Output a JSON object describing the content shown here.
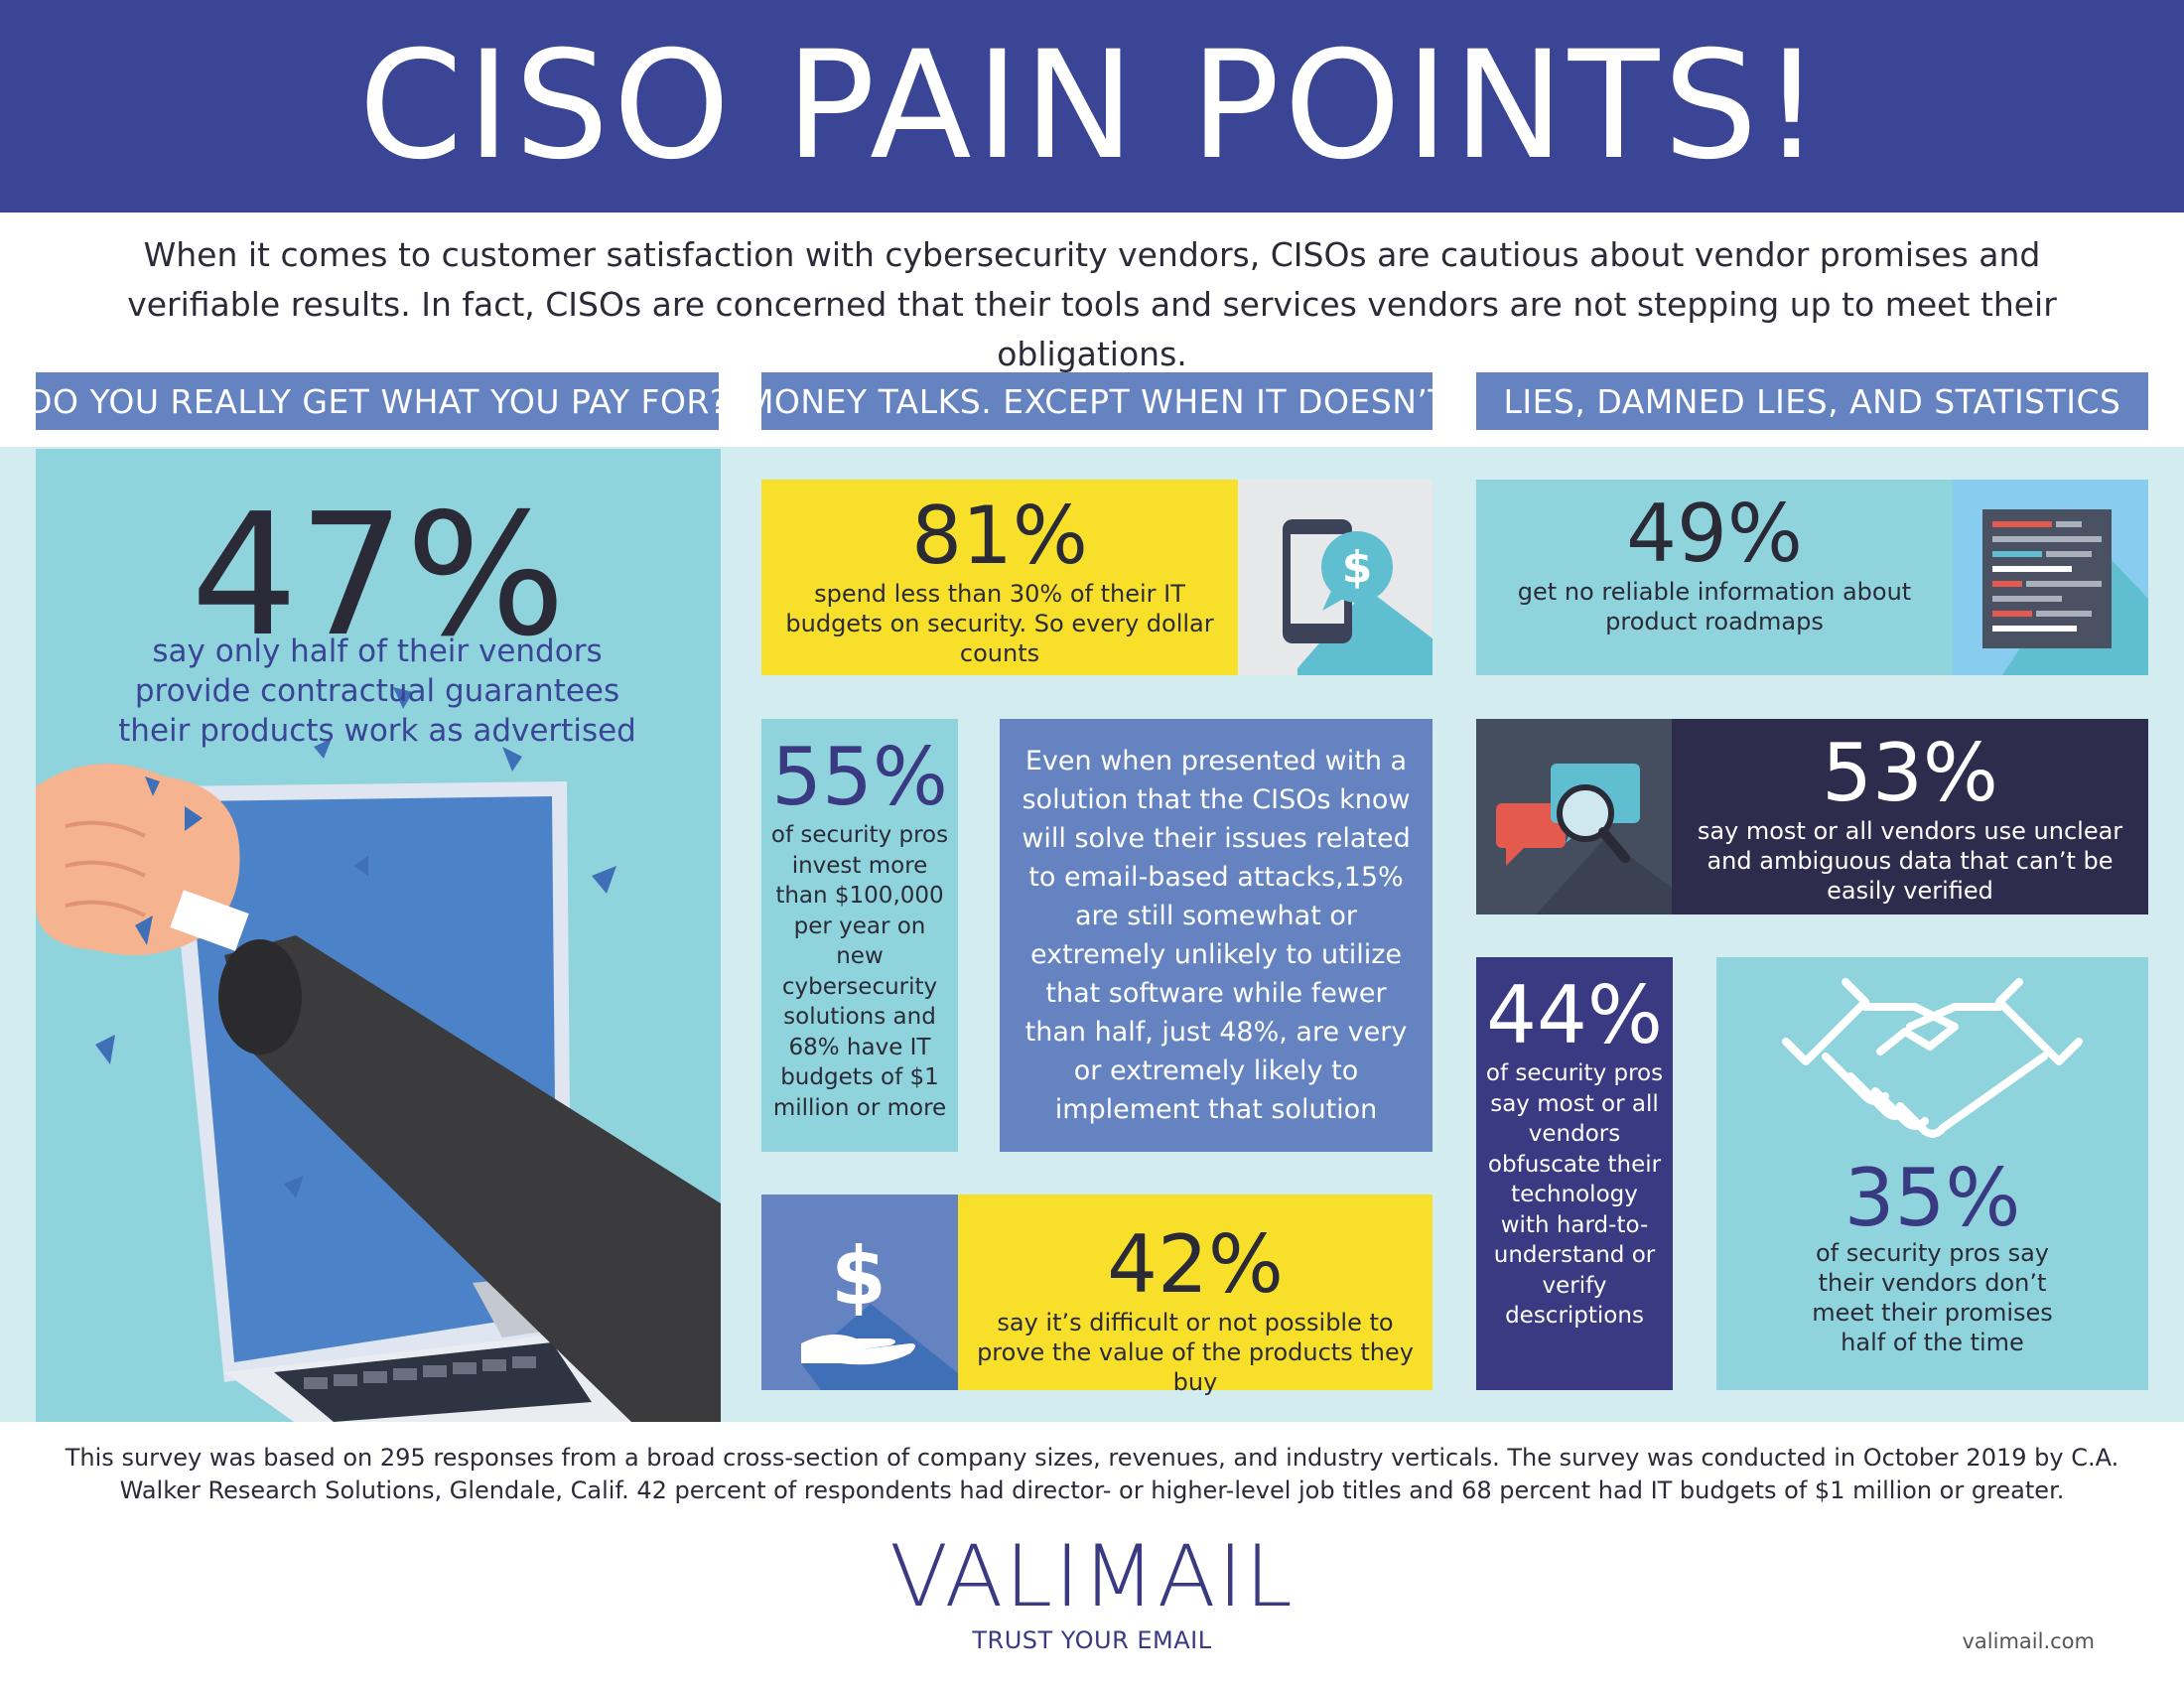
{
  "header": {
    "title": "CISO PAIN POINTS!"
  },
  "intro": "When it comes to customer satisfaction with cybersecurity vendors, CISOs are cautious about vendor promises and verifiable results. In fact, CISOs are concerned that their tools and services vendors are not stepping up to meet their obligations.",
  "columns": [
    {
      "label": "DO YOU REALLY GET WHAT YOU PAY FOR?"
    },
    {
      "label": "MONEY TALKS. EXCEPT WHEN IT DOESN’T"
    },
    {
      "label": "LIES, DAMNED LIES, AND STATISTICS"
    }
  ],
  "stats": {
    "s47": {
      "value": "47%",
      "text": "say only half of their vendors provide contractual guarantees their products work as advertised"
    },
    "s81": {
      "value": "81%",
      "text": "spend less than 30% of their IT budgets on security. So every dollar counts"
    },
    "s55": {
      "value": "55%",
      "text": "of security pros invest more than $100,000 per year on new cybersecurity solutions and 68% have IT budgets of $1 million or more"
    },
    "email": {
      "text": "Even when presented with a solution that the CISOs know will solve their issues related to email-based attacks,15% are still somewhat or extremely unlikely to utilize that software while fewer than half, just 48%, are very or extremely likely to implement that solution"
    },
    "s42": {
      "value": "42%",
      "text": "say it’s difficult or not possible to prove the value of the products they buy"
    },
    "s49": {
      "value": "49%",
      "text": "get no reliable information about product roadmaps"
    },
    "s53": {
      "value": "53%",
      "text": "say most or all vendors use unclear and ambiguous data that can’t be easily verified"
    },
    "s44": {
      "value": "44%",
      "text": "of security pros say most or all vendors obfuscate their technology with hard-to-understand or verify descriptions"
    },
    "s35": {
      "value": "35%",
      "text": "of security pros say their vendors don’t meet their promises half of the time"
    }
  },
  "icons": {
    "dollar_symbol": "$",
    "names": [
      "fist-through-laptop-illustration",
      "phone-dollar-icon",
      "hand-dollar-icon",
      "code-document-icon",
      "chat-magnify-icon",
      "handshake-icon"
    ]
  },
  "footer": {
    "text": "This survey was based on 295 responses from a broad cross-section of company sizes, revenues, and industry verticals. The survey was conducted in October 2019 by C.A. Walker Research Solutions, Glendale, Calif. 42 percent of respondents had director- or higher-level job titles and 68 percent had IT budgets of $1 million or greater.",
    "logo": "VALIMAIL",
    "tagline": "TRUST YOUR EMAIL",
    "site": "valimail.com"
  },
  "colors": {
    "navy": "#3a4595",
    "blue": "#6583c1",
    "teal": "#8fd3dc",
    "yellow": "#f8df2a",
    "dark": "#2e2c4d"
  }
}
